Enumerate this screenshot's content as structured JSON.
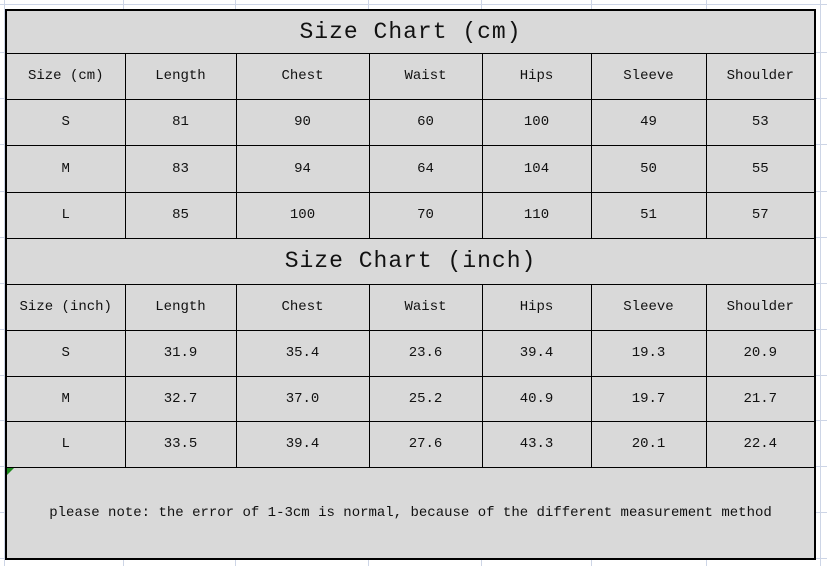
{
  "colors": {
    "cell_fill": "#d9d9d9",
    "table_border": "#000000",
    "grid_line": "#cdd5e6",
    "error_indicator_green": "#1e8a1e",
    "text": "#111111",
    "page_background": "#ffffff"
  },
  "cm": {
    "title": "Size Chart (cm)",
    "headers": [
      "Size (cm)",
      "Length",
      "Chest",
      "Waist",
      "Hips",
      "Sleeve",
      "Shoulder"
    ],
    "rows": [
      [
        "S",
        "81",
        "90",
        "60",
        "100",
        "49",
        "53"
      ],
      [
        "M",
        "83",
        "94",
        "64",
        "104",
        "50",
        "55"
      ],
      [
        "L",
        "85",
        "100",
        "70",
        "110",
        "51",
        "57"
      ]
    ]
  },
  "inch": {
    "title": "Size Chart (inch)",
    "headers": [
      "Size (inch)",
      "Length",
      "Chest",
      "Waist",
      "Hips",
      "Sleeve",
      "Shoulder"
    ],
    "rows": [
      [
        "S",
        "31.9",
        "35.4",
        "23.6",
        "39.4",
        "19.3",
        "20.9"
      ],
      [
        "M",
        "32.7",
        "37.0",
        "25.2",
        "40.9",
        "19.7",
        "21.7"
      ],
      [
        "L",
        "33.5",
        "39.4",
        "27.6",
        "43.3",
        "20.1",
        "22.4"
      ]
    ]
  },
  "note": {
    "text": "please note: the error of 1-3cm is normal, because of the different measurement method"
  }
}
